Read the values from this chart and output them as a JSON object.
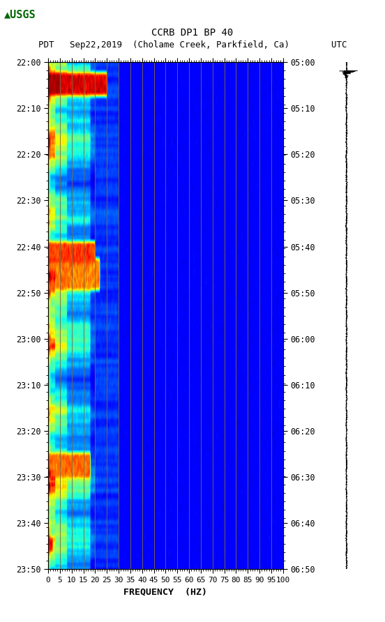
{
  "title_line1": "CCRB DP1 BP 40",
  "title_line2": "PDT   Sep22,2019  (Cholame Creek, Parkfield, Ca)        UTC",
  "xlabel": "FREQUENCY  (HZ)",
  "freq_min": 0,
  "freq_max": 100,
  "time_ticks_pdt": [
    "22:00",
    "22:10",
    "22:20",
    "22:30",
    "22:40",
    "22:50",
    "23:00",
    "23:10",
    "23:20",
    "23:30",
    "23:40",
    "23:50"
  ],
  "time_ticks_utc": [
    "05:00",
    "05:10",
    "05:20",
    "05:30",
    "05:40",
    "05:50",
    "06:00",
    "06:10",
    "06:20",
    "06:30",
    "06:40",
    "06:50"
  ],
  "freq_tick_labels": [
    "0",
    "5",
    "10",
    "15",
    "20",
    "25",
    "30",
    "35",
    "40",
    "45",
    "50",
    "55",
    "60",
    "65",
    "70",
    "75",
    "80",
    "85",
    "90",
    "95",
    "100"
  ],
  "vgrid_freqs": [
    5,
    10,
    15,
    20,
    25,
    30,
    35,
    40,
    45,
    50,
    55,
    60,
    65,
    70,
    75,
    80,
    85,
    90,
    95,
    100
  ],
  "vgrid_color": "#7B6840",
  "colormap": "jet",
  "background_color": "#ffffff",
  "font_family": "monospace",
  "title_fontsize": 10,
  "subtitle_fontsize": 9,
  "tick_fontsize": 8.5
}
